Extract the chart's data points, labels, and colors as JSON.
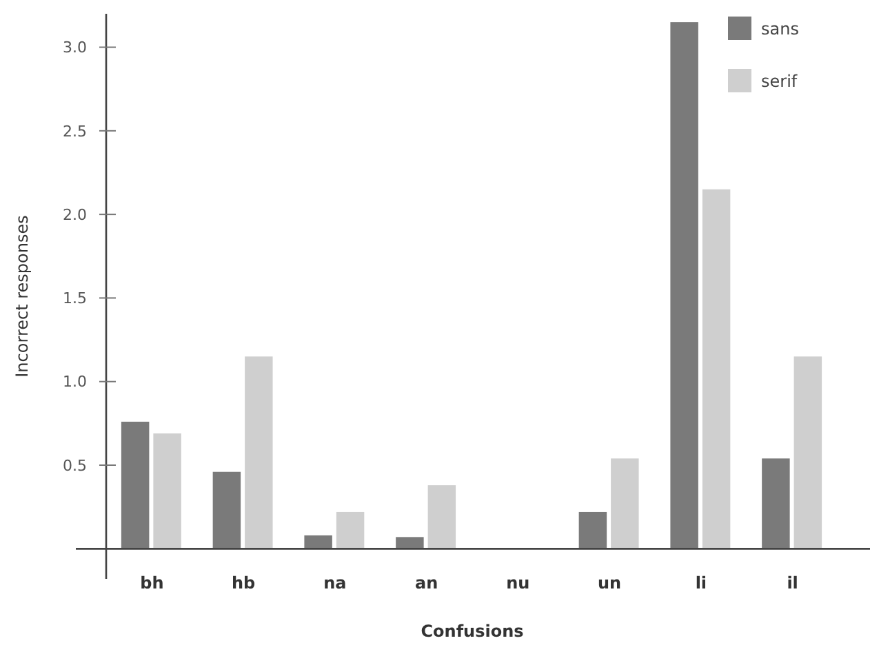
{
  "chart_data": {
    "type": "bar",
    "xlabel": "Confusions",
    "ylabel": "Incorrect responses",
    "categories": [
      "bh",
      "hb",
      "na",
      "an",
      "nu",
      "un",
      "li",
      "il"
    ],
    "series": [
      {
        "name": "sans",
        "color": "#7a7a7a",
        "values": [
          0.76,
          0.46,
          0.08,
          0.07,
          0,
          0.22,
          3.15,
          0.54
        ]
      },
      {
        "name": "serif",
        "color": "#cfcfcf",
        "values": [
          0.69,
          1.15,
          0.22,
          0.38,
          0,
          0.54,
          2.15,
          1.15
        ]
      }
    ],
    "ylim": [
      -0.18,
      3.2
    ],
    "yticks": [
      {
        "value": 0.5,
        "label": "0.5"
      },
      {
        "value": 1,
        "label": "1.0"
      },
      {
        "value": 1.5,
        "label": "1.5"
      },
      {
        "value": 2,
        "label": "2.0"
      },
      {
        "value": 2.5,
        "label": "2.5"
      },
      {
        "value": 3,
        "label": "3.0"
      }
    ],
    "grid": false,
    "legend": "top right"
  }
}
